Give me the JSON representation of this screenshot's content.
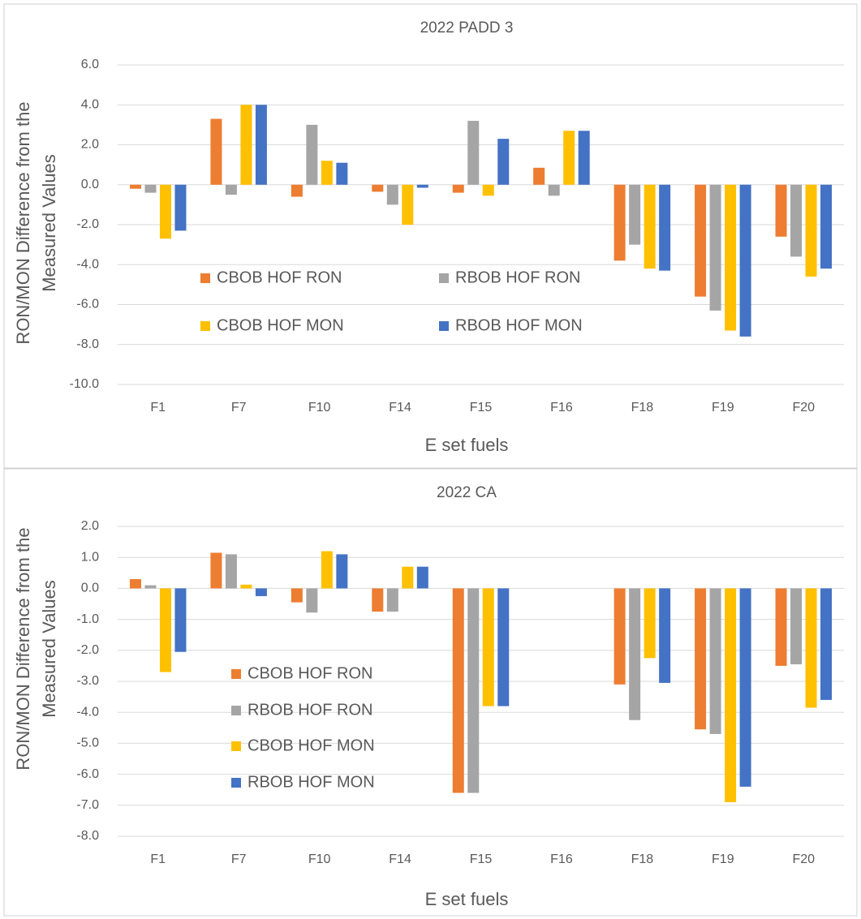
{
  "chart_data": [
    {
      "type": "bar",
      "title": "2022 PADD 3",
      "x_label": "E set fuels",
      "y_label": [
        "RON/MON Difference from the",
        "Measured Values"
      ],
      "categories": [
        "F1",
        "F7",
        "F10",
        "F14",
        "F15",
        "F16",
        "F18",
        "F19",
        "F20"
      ],
      "series": [
        {
          "name": "CBOB HOF RON",
          "color": "#ED7D31",
          "values": [
            -0.2,
            3.3,
            -0.6,
            -0.35,
            -0.4,
            0.85,
            -3.8,
            -5.6,
            -2.6
          ]
        },
        {
          "name": "RBOB HOF RON",
          "color": "#A5A5A5",
          "values": [
            -0.4,
            -0.5,
            3.0,
            -1.0,
            3.2,
            -0.55,
            -3.0,
            -6.3,
            -3.6
          ]
        },
        {
          "name": "CBOB HOF MON",
          "color": "#FFC000",
          "values": [
            -2.7,
            4.0,
            1.2,
            -2.0,
            -0.55,
            2.7,
            -4.2,
            -7.3,
            -4.6
          ]
        },
        {
          "name": "RBOB HOF MON",
          "color": "#4472C4",
          "values": [
            -2.3,
            4.0,
            1.1,
            -0.15,
            2.3,
            2.7,
            -4.3,
            -7.6,
            -4.2
          ]
        }
      ],
      "ylim": [
        -10,
        6
      ],
      "yticks": [
        {
          "value": -10,
          "label": "-10.0"
        },
        {
          "value": -8,
          "label": "-8.0"
        },
        {
          "value": -6,
          "label": "-6.0"
        },
        {
          "value": -4,
          "label": "-4.0"
        },
        {
          "value": -2,
          "label": "-2.0"
        },
        {
          "value": 0,
          "label": "0.0"
        },
        {
          "value": 2,
          "label": "2.0"
        },
        {
          "value": 4,
          "label": "4.0"
        },
        {
          "value": 6,
          "label": "6.0"
        }
      ],
      "grid": true
    },
    {
      "type": "bar",
      "title": "2022 CA",
      "x_label": "E set fuels",
      "y_label": [
        "RON/MON Difference from the",
        "Measured Values"
      ],
      "categories": [
        "F1",
        "F7",
        "F10",
        "F14",
        "F15",
        "F16",
        "F18",
        "F19",
        "F20"
      ],
      "series": [
        {
          "name": "CBOB HOF RON",
          "color": "#ED7D31",
          "values": [
            0.3,
            1.15,
            -0.45,
            -0.75,
            -6.6,
            null,
            -3.1,
            -4.55,
            -2.5
          ]
        },
        {
          "name": "RBOB HOF RON",
          "color": "#A5A5A5",
          "values": [
            0.1,
            1.1,
            -0.78,
            -0.75,
            -6.6,
            null,
            -4.25,
            -4.7,
            -2.45
          ]
        },
        {
          "name": "CBOB HOF MON",
          "color": "#FFC000",
          "values": [
            -2.7,
            0.12,
            1.2,
            0.7,
            -3.8,
            null,
            -2.25,
            -6.9,
            -3.85
          ]
        },
        {
          "name": "RBOB HOF MON",
          "color": "#4472C4",
          "values": [
            -2.05,
            -0.25,
            1.1,
            0.7,
            -3.8,
            null,
            -3.05,
            -6.4,
            -3.6
          ]
        }
      ],
      "ylim": [
        -8,
        2
      ],
      "yticks": [
        {
          "value": -8,
          "label": "-8.0"
        },
        {
          "value": -7,
          "label": "-7.0"
        },
        {
          "value": -6,
          "label": "-6.0"
        },
        {
          "value": -5,
          "label": "-5.0"
        },
        {
          "value": -4,
          "label": "-4.0"
        },
        {
          "value": -3,
          "label": "-3.0"
        },
        {
          "value": -2,
          "label": "-2.0"
        },
        {
          "value": -1,
          "label": "-1.0"
        },
        {
          "value": 0,
          "label": "0.0"
        },
        {
          "value": 1,
          "label": "1.0"
        },
        {
          "value": 2,
          "label": "2.0"
        }
      ],
      "grid": true
    }
  ]
}
